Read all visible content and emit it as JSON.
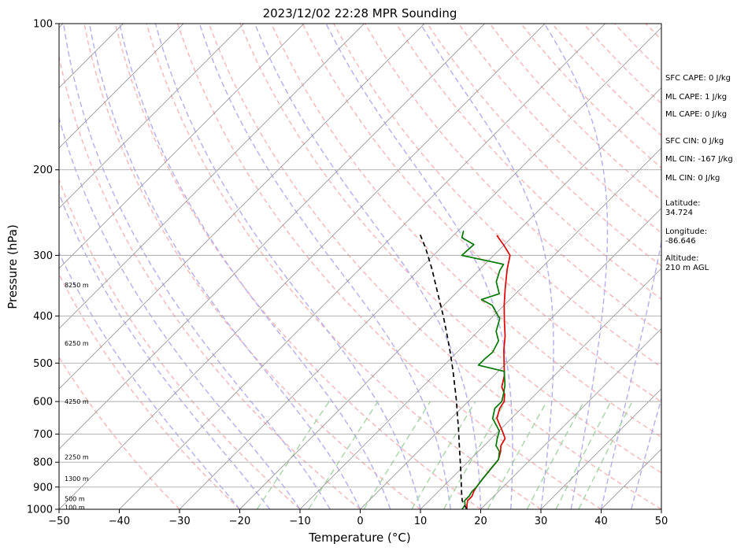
{
  "chart_data": {
    "type": "line",
    "title": "2023/12/02 22:28 MPR Sounding",
    "xlabel": "Temperature (°C)",
    "ylabel": "Pressure (hPa)",
    "xlim": [
      -50,
      50
    ],
    "ylim": [
      1000,
      100
    ],
    "y_scale": "log",
    "skew_degrees": 45,
    "grid": true,
    "x_ticks": [
      "−50",
      "−40",
      "−30",
      "−20",
      "−10",
      "0",
      "10",
      "20",
      "30",
      "40",
      "50"
    ],
    "x_tick_values": [
      -50,
      -40,
      -30,
      -20,
      -10,
      0,
      10,
      20,
      30,
      40,
      50
    ],
    "y_ticks": [
      "100",
      "200",
      "300",
      "400",
      "500",
      "600",
      "700",
      "800",
      "900",
      "1000"
    ],
    "y_tick_values": [
      100,
      200,
      300,
      400,
      500,
      600,
      700,
      800,
      900,
      1000
    ],
    "colors": {
      "temperature": "#dd0000",
      "dewpoint": "#007700",
      "parcel": "#000000",
      "dry_adiabat": "#f4a3a3",
      "moist_adiabat": "#a9a6ec",
      "mixing_ratio": "#a3d3a3",
      "isotherm": "#999999",
      "isobar": "#aaaaaa"
    },
    "series": [
      {
        "color": "#dd0000",
        "points": [
          {
            "p": 1000,
            "t": 17.7
          },
          {
            "p": 980,
            "t": 17.0
          },
          {
            "p": 960,
            "t": 16.4
          },
          {
            "p": 940,
            "t": 16.4
          },
          {
            "p": 920,
            "t": 15.9
          },
          {
            "p": 900,
            "t": 15.6
          },
          {
            "p": 870,
            "t": 15.3
          },
          {
            "p": 830,
            "t": 15.0
          },
          {
            "p": 790,
            "t": 14.7
          },
          {
            "p": 760,
            "t": 13.7
          },
          {
            "p": 740,
            "t": 12.8
          },
          {
            "p": 715,
            "t": 12.3
          },
          {
            "p": 690,
            "t": 10.6
          },
          {
            "p": 650,
            "t": 7.6
          },
          {
            "p": 620,
            "t": 6.4
          },
          {
            "p": 600,
            "t": 6.0
          },
          {
            "p": 580,
            "t": 4.9
          },
          {
            "p": 560,
            "t": 3.2
          },
          {
            "p": 530,
            "t": 1.7
          },
          {
            "p": 500,
            "t": -0.4
          },
          {
            "p": 470,
            "t": -2.6
          },
          {
            "p": 440,
            "t": -4.7
          },
          {
            "p": 410,
            "t": -7.3
          },
          {
            "p": 380,
            "t": -10.0
          },
          {
            "p": 350,
            "t": -12.7
          },
          {
            "p": 320,
            "t": -15.5
          },
          {
            "p": 300,
            "t": -17.3
          },
          {
            "p": 285,
            "t": -20.2
          },
          {
            "p": 273,
            "t": -22.8
          }
        ]
      },
      {
        "color": "#007700",
        "points": [
          {
            "p": 1000,
            "t": 16.9
          },
          {
            "p": 980,
            "t": 16.7
          },
          {
            "p": 960,
            "t": 15.9
          },
          {
            "p": 940,
            "t": 15.9
          },
          {
            "p": 920,
            "t": 15.6
          },
          {
            "p": 900,
            "t": 15.6
          },
          {
            "p": 870,
            "t": 15.3
          },
          {
            "p": 830,
            "t": 15.0
          },
          {
            "p": 790,
            "t": 14.7
          },
          {
            "p": 760,
            "t": 13.5
          },
          {
            "p": 740,
            "t": 12.0
          },
          {
            "p": 715,
            "t": 11.0
          },
          {
            "p": 690,
            "t": 10.1
          },
          {
            "p": 650,
            "t": 6.9
          },
          {
            "p": 620,
            "t": 5.6
          },
          {
            "p": 600,
            "t": 5.6
          },
          {
            "p": 580,
            "t": 4.7
          },
          {
            "p": 555,
            "t": 3.4
          },
          {
            "p": 520,
            "t": 1.0
          },
          {
            "p": 505,
            "t": -4.3
          },
          {
            "p": 490,
            "t": -4.3
          },
          {
            "p": 475,
            "t": -4.1
          },
          {
            "p": 450,
            "t": -5.0
          },
          {
            "p": 430,
            "t": -7.0
          },
          {
            "p": 405,
            "t": -8.5
          },
          {
            "p": 380,
            "t": -12.0
          },
          {
            "p": 370,
            "t": -14.7
          },
          {
            "p": 360,
            "t": -12.7
          },
          {
            "p": 340,
            "t": -15.2
          },
          {
            "p": 322,
            "t": -16.5
          },
          {
            "p": 313,
            "t": -16.9
          },
          {
            "p": 300,
            "t": -25.3
          },
          {
            "p": 285,
            "t": -25.1
          },
          {
            "p": 276,
            "t": -28.2
          },
          {
            "p": 267,
            "t": -29.1
          }
        ]
      },
      {
        "color": "#000000",
        "dashed": true,
        "points": [
          {
            "p": 1000,
            "t": 17.7
          },
          {
            "p": 960,
            "t": 15.5
          },
          {
            "p": 920,
            "t": 13.9
          },
          {
            "p": 880,
            "t": 12.3
          },
          {
            "p": 840,
            "t": 10.6
          },
          {
            "p": 800,
            "t": 8.8
          },
          {
            "p": 760,
            "t": 6.9
          },
          {
            "p": 720,
            "t": 4.9
          },
          {
            "p": 680,
            "t": 2.8
          },
          {
            "p": 640,
            "t": 0.5
          },
          {
            "p": 600,
            "t": -1.9
          },
          {
            "p": 560,
            "t": -4.6
          },
          {
            "p": 520,
            "t": -7.5
          },
          {
            "p": 480,
            "t": -10.7
          },
          {
            "p": 440,
            "t": -14.3
          },
          {
            "p": 400,
            "t": -18.3
          },
          {
            "p": 360,
            "t": -22.9
          },
          {
            "p": 320,
            "t": -28.0
          },
          {
            "p": 290,
            "t": -32.5
          },
          {
            "p": 270,
            "t": -36.0
          }
        ]
      }
    ],
    "height_labels": [
      "8250 m",
      "6250 m",
      "4250 m",
      "2250 m",
      "1300 m",
      "500 m",
      "100 m"
    ],
    "height_label_pressures": [
      345,
      455,
      600,
      780,
      865,
      950,
      990
    ],
    "annotations": [
      "SFC CAPE: 0 J/kg",
      "ML CAPE: 1 J/kg",
      "ML CAPE: 0 J/kg",
      "SFC CIN: 0 J/kg",
      "ML CIN: -167 J/kg",
      "ML CIN: 0 J/kg",
      "Latitude:",
      "34.724",
      "Longitude:",
      "-86.646",
      "Altitude:",
      "210 m AGL"
    ]
  }
}
